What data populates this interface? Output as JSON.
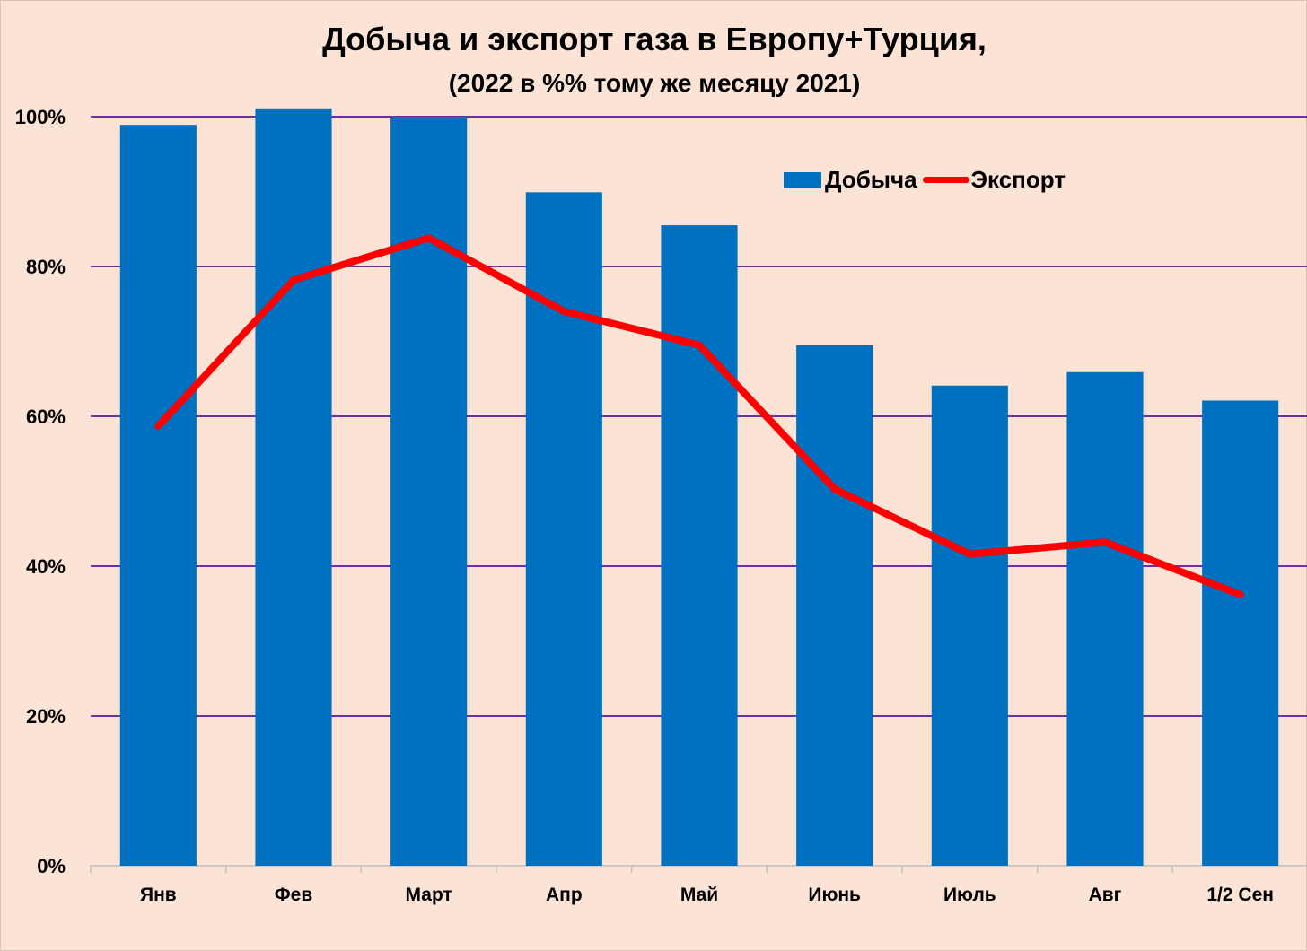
{
  "chart_data": {
    "type": "bar",
    "title": "Добыча и экспорт газа в Европу+Турция,",
    "subtitle": "(2022 в %% тому же месяцу 2021)",
    "categories": [
      "Янв",
      "Фев",
      "Март",
      "Апр",
      "Май",
      "Июнь",
      "Июль",
      "Авг",
      "1/2 Сен"
    ],
    "series": [
      {
        "name": "Добыча",
        "type": "bar",
        "color": "#0070c0",
        "values": [
          98.9,
          101.1,
          100.0,
          89.9,
          85.5,
          69.5,
          64.1,
          65.9,
          62.1
        ]
      },
      {
        "name": "Экспорт",
        "type": "line",
        "color": "#ff0000",
        "values": [
          58.7,
          78.2,
          83.8,
          74.0,
          69.5,
          50.3,
          41.6,
          43.2,
          36.2
        ]
      }
    ],
    "y_ticks": [
      "0%",
      "20%",
      "40%",
      "60%",
      "80%",
      "100%"
    ],
    "ylim": [
      0,
      100
    ],
    "grid": true,
    "grid_color": "#7030a0",
    "background_color": "#fbe4d5",
    "legend_position": "top-right"
  }
}
